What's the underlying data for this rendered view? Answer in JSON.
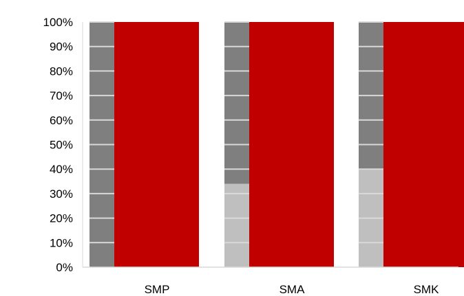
{
  "chart_data": {
    "type": "bar",
    "categories": [
      "SMP",
      "SMA",
      "SMK"
    ],
    "series": [
      {
        "values": [
          0,
          34,
          40
        ],
        "color": "#bfbfbf"
      },
      {
        "values": [
          100,
          66,
          60
        ],
        "color": "#7f7f7f"
      },
      {
        "values": [
          100,
          100,
          100
        ],
        "color": "#c00000"
      }
    ],
    "ylim": [
      0,
      100
    ],
    "yticks": [
      "0%",
      "10%",
      "20%",
      "30%",
      "40%",
      "50%",
      "60%",
      "70%",
      "80%",
      "90%",
      "100%"
    ],
    "grid": true,
    "gridline_color": "#d9d9d9"
  }
}
